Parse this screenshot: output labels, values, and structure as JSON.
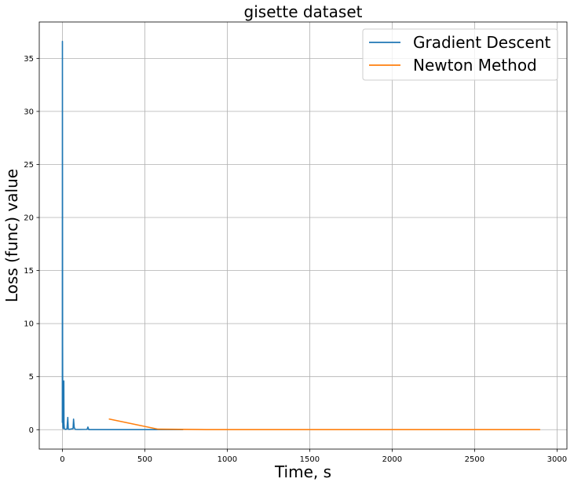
{
  "chart_data": {
    "type": "line",
    "title": "gisette dataset",
    "xlabel": "Time, s",
    "ylabel": "Loss (func) value",
    "xlim": [
      -140,
      3060
    ],
    "ylim": [
      -1.83,
      38.43
    ],
    "xticks": [
      0,
      500,
      1000,
      1500,
      2000,
      2500,
      3000
    ],
    "yticks": [
      0,
      5,
      10,
      15,
      20,
      25,
      30,
      35
    ],
    "grid": true,
    "legend_position": "top-right",
    "series": [
      {
        "name": "Gradient Descent",
        "color": "#1f77b4",
        "x": [
          0,
          0.5,
          1.5,
          2.5,
          3.5,
          5,
          7,
          9,
          10,
          12,
          16,
          18,
          24,
          28,
          33,
          36,
          40,
          48,
          58,
          65,
          68,
          72,
          78,
          90,
          110,
          150,
          155,
          160,
          170,
          200,
          250,
          350,
          500,
          650,
          730
        ],
        "y": [
          0.69,
          36.6,
          8.0,
          1.6,
          0.3,
          0.1,
          1.5,
          4.6,
          0.6,
          0.1,
          0.05,
          0.03,
          0.05,
          0.08,
          1.15,
          0.05,
          0.03,
          0.05,
          0.08,
          0.1,
          1.0,
          0.2,
          0.03,
          0.02,
          0.02,
          0.03,
          0.25,
          0.01,
          0.01,
          0.01,
          0.01,
          0.005,
          0.005,
          0.005,
          0.005
        ]
      },
      {
        "name": "Newton Method",
        "color": "#ff7f0e",
        "x": [
          285,
          580,
          870,
          1160,
          1450,
          1740,
          2030,
          2320,
          2610,
          2895
        ],
        "y": [
          1.0,
          0.05,
          0.01,
          0.005,
          0.005,
          0.005,
          0.005,
          0.005,
          0.005,
          0.005
        ]
      }
    ]
  }
}
